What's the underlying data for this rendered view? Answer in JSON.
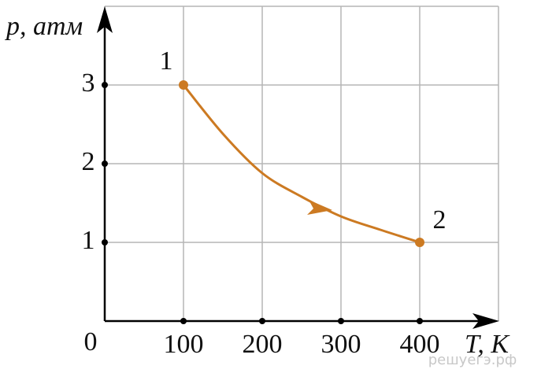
{
  "chart_data": {
    "type": "line",
    "y_label": "p, атм",
    "x_label": "T, К",
    "x": [
      100,
      150,
      200,
      250,
      300,
      350,
      400
    ],
    "series": [
      {
        "color": "#cc7a22",
        "values": [
          3,
          2.38,
          1.88,
          1.58,
          1.33,
          1.16,
          1
        ]
      }
    ],
    "point_labels": [
      "1",
      "2"
    ],
    "xlim": [
      0,
      500
    ],
    "ylim": [
      0,
      4
    ],
    "xticks": [
      0,
      100,
      200,
      300,
      400
    ],
    "yticks": [
      1,
      2,
      3
    ],
    "grid": true,
    "watermark": "решуегэ.рф"
  }
}
